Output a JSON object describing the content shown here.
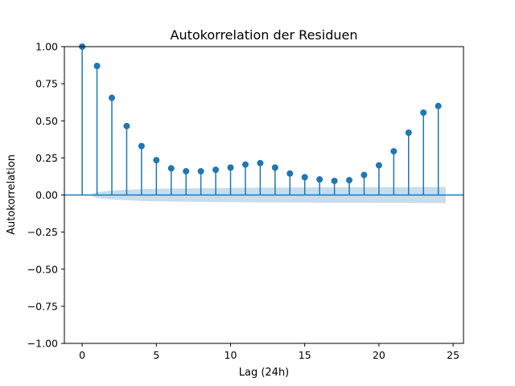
{
  "chart_data": {
    "type": "stem",
    "title": "Autokorrelation der Residuen",
    "xlabel": "Lag (24h)",
    "ylabel": "Autokorrelation",
    "xlim": [
      -1.2,
      25.7
    ],
    "ylim": [
      -1.0,
      1.0
    ],
    "xticks": [
      0,
      5,
      10,
      15,
      20,
      25
    ],
    "yticks": [
      -1.0,
      -0.75,
      -0.5,
      -0.25,
      0.0,
      0.25,
      0.5,
      0.75,
      1.0
    ],
    "ytick_labels": [
      "−1.00",
      "−0.75",
      "−0.50",
      "−0.25",
      "0.00",
      "0.25",
      "0.50",
      "0.75",
      "1.00"
    ],
    "lags": [
      0,
      1,
      2,
      3,
      4,
      5,
      6,
      7,
      8,
      9,
      10,
      11,
      12,
      13,
      14,
      15,
      16,
      17,
      18,
      19,
      20,
      21,
      22,
      23,
      24
    ],
    "values": [
      1.0,
      0.87,
      0.655,
      0.465,
      0.33,
      0.235,
      0.18,
      0.16,
      0.16,
      0.17,
      0.185,
      0.205,
      0.215,
      0.185,
      0.145,
      0.12,
      0.105,
      0.095,
      0.1,
      0.135,
      0.2,
      0.295,
      0.42,
      0.555,
      0.6
    ],
    "confidence_band": {
      "lags": [
        0.5,
        1,
        2,
        3,
        4,
        5,
        6,
        7,
        8,
        9,
        10,
        11,
        12,
        13,
        14,
        15,
        16,
        17,
        18,
        19,
        20,
        21,
        22,
        23,
        24,
        24.5
      ],
      "upper": [
        0.0,
        0.02,
        0.03,
        0.035,
        0.04,
        0.042,
        0.044,
        0.045,
        0.046,
        0.047,
        0.048,
        0.049,
        0.05,
        0.05,
        0.051,
        0.051,
        0.052,
        0.052,
        0.052,
        0.052,
        0.053,
        0.053,
        0.053,
        0.054,
        0.054,
        0.055
      ]
    },
    "colors": {
      "stem": "#1f77b4",
      "marker": "#1f77b4",
      "band": "#1f77b4",
      "baseline": "#1f77b4"
    },
    "grid": false
  }
}
